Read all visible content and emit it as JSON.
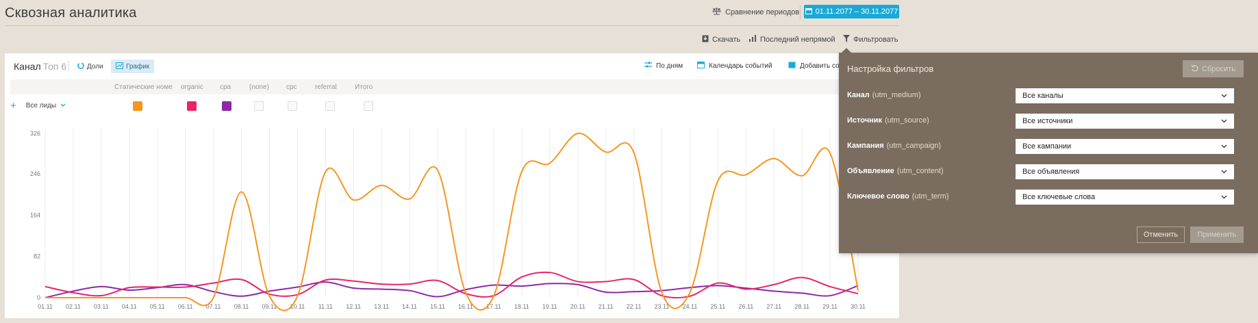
{
  "page": {
    "title": "Сквозная аналитика"
  },
  "header": {
    "compare_label": "Сравнение периодов",
    "date_range": "01.11.2077 – 30.11.2077"
  },
  "toolbar": {
    "download": "Скачать",
    "attribution": "Последний непрямой",
    "filter": "Фильтровать"
  },
  "panel": {
    "title": "Канал",
    "top_label": "Топ 6",
    "tab_shares": "Доли",
    "tab_chart": "График",
    "by_days": "По дням",
    "events_calendar": "Календарь событий",
    "add_label": "Добавить со"
  },
  "legend": {
    "columns": [
      "Статические номе",
      "organic",
      "cpa",
      "(none)",
      "cpc",
      "referral",
      "Итого"
    ],
    "leads_label": "Все лиды"
  },
  "colors": {
    "orange": "#f7951d",
    "pink": "#e8236a",
    "purple": "#8f27a8",
    "blue": "#1aa9d6",
    "popup_bg": "#7a6d5f"
  },
  "chart_data": {
    "type": "line",
    "x": [
      "01.11",
      "02.11",
      "03.11",
      "04.11",
      "05.11",
      "06.11",
      "07.11",
      "08.11",
      "09.11",
      "10.11",
      "11.11",
      "12.11",
      "13.11",
      "14.11",
      "15.11",
      "16.11",
      "17.11",
      "18.11",
      "19.11",
      "20.11",
      "21.11",
      "22.11",
      "23.11",
      "24.11",
      "25.11",
      "26.11",
      "27.11",
      "28.11",
      "29.11",
      "30.11"
    ],
    "yticks": [
      "0",
      "82",
      "164",
      "246",
      "326"
    ],
    "ylim": [
      0,
      326
    ],
    "series": [
      {
        "color": "#f7951d",
        "values": [
          0,
          0,
          0,
          0,
          0,
          0,
          0,
          210,
          3,
          3,
          250,
          194,
          223,
          196,
          253,
          10,
          3,
          250,
          267,
          326,
          289,
          288,
          10,
          10,
          232,
          244,
          276,
          242,
          287,
          14
        ]
      },
      {
        "color": "#e8236a",
        "values": [
          22,
          10,
          4,
          20,
          21,
          21,
          29,
          36,
          7,
          6,
          35,
          33,
          27,
          27,
          34,
          8,
          4,
          41,
          50,
          32,
          32,
          36,
          4,
          3,
          29,
          17,
          26,
          40,
          22,
          8
        ]
      },
      {
        "color": "#8f27a8",
        "values": [
          0,
          13,
          22,
          15,
          20,
          26,
          12,
          3,
          13,
          21,
          31,
          19,
          17,
          14,
          2,
          16,
          25,
          23,
          28,
          26,
          11,
          12,
          14,
          20,
          24,
          19,
          13,
          9,
          4,
          24
        ]
      }
    ]
  },
  "filters": {
    "title": "Настройка фильтров",
    "reset": "Сбросить",
    "rows": [
      {
        "label": "Канал",
        "param": "(utm_medium)",
        "value": "Все каналы"
      },
      {
        "label": "Источник",
        "param": "(utm_source)",
        "value": "Все источники"
      },
      {
        "label": "Кампания",
        "param": "(utm_campaign)",
        "value": "Все кампании"
      },
      {
        "label": "Объявление",
        "param": "(utm_content)",
        "value": "Все объявления"
      },
      {
        "label": "Ключевое слово",
        "param": "(utm_term)",
        "value": "Все ключевые слова"
      }
    ],
    "cancel": "Отменить",
    "apply": "Применить"
  }
}
